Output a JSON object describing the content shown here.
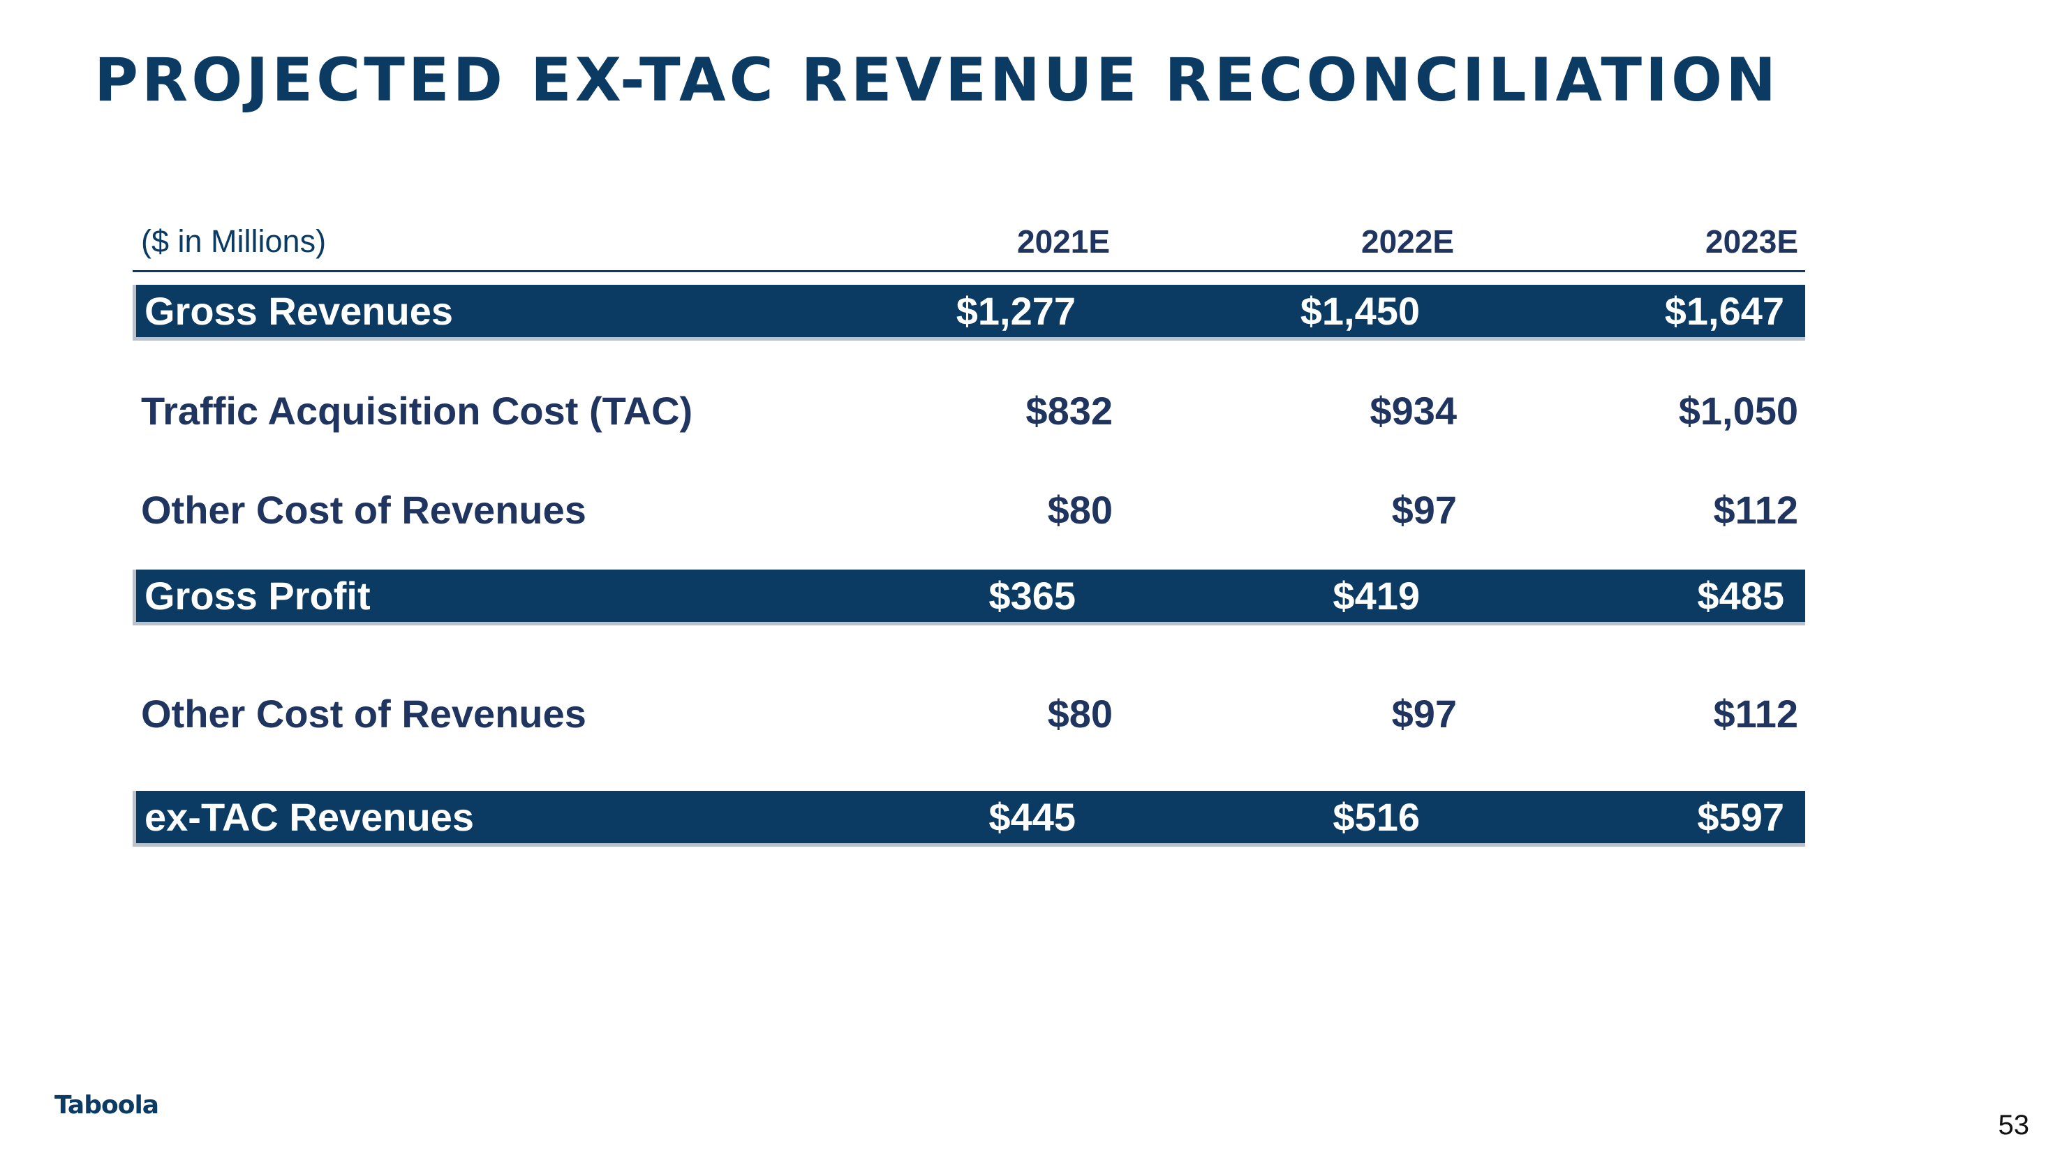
{
  "title": "PROJECTED EX-TAC REVENUE RECONCILIATION",
  "table": {
    "unit_label": "($ in Millions)",
    "columns": [
      "2021E",
      "2022E",
      "2023E"
    ],
    "rows": [
      {
        "label": "Gross Revenues",
        "values": [
          "$1,277",
          "$1,450",
          "$1,647"
        ],
        "highlight": true
      },
      {
        "label": "Traffic Acquisition Cost (TAC)",
        "values": [
          "$832",
          "$934",
          "$1,050"
        ],
        "highlight": false
      },
      {
        "label": "Other Cost of Revenues",
        "values": [
          "$80",
          "$97",
          "$112"
        ],
        "highlight": false
      },
      {
        "label": "Gross Profit",
        "values": [
          "$365",
          "$419",
          "$485"
        ],
        "highlight": true
      },
      {
        "label": "Other Cost of Revenues",
        "values": [
          "$80",
          "$97",
          "$112"
        ],
        "highlight": false
      },
      {
        "label": "ex-TAC Revenues",
        "values": [
          "$445",
          "$516",
          "$597"
        ],
        "highlight": true
      }
    ]
  },
  "colors": {
    "navy": "#0b3a63",
    "text": "#1f3560",
    "shadow": "#b9c2cc"
  },
  "footer": {
    "logo": "Taboola",
    "page_number": "53"
  }
}
